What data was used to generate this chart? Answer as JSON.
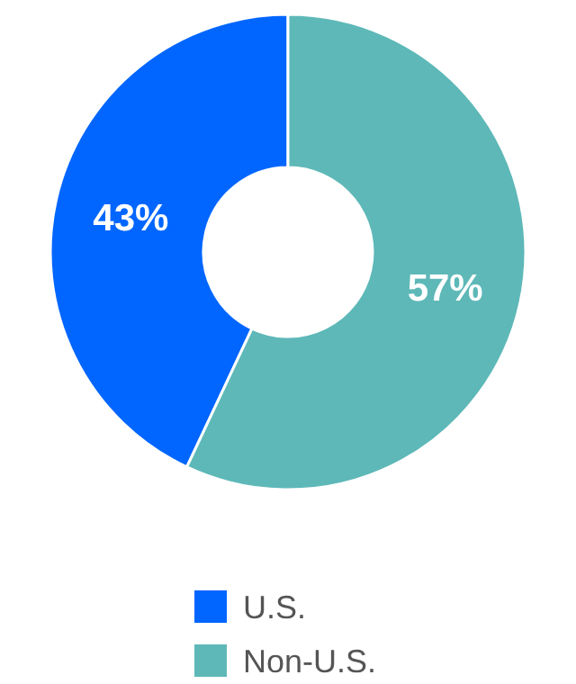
{
  "chart_data": {
    "type": "donut",
    "categories": [
      "U.S.",
      "Non-U.S."
    ],
    "values": [
      43,
      57
    ],
    "colors": [
      "#0066ff",
      "#5eb8b8"
    ],
    "value_labels": [
      "43%",
      "57%"
    ],
    "legend": "bottom"
  }
}
